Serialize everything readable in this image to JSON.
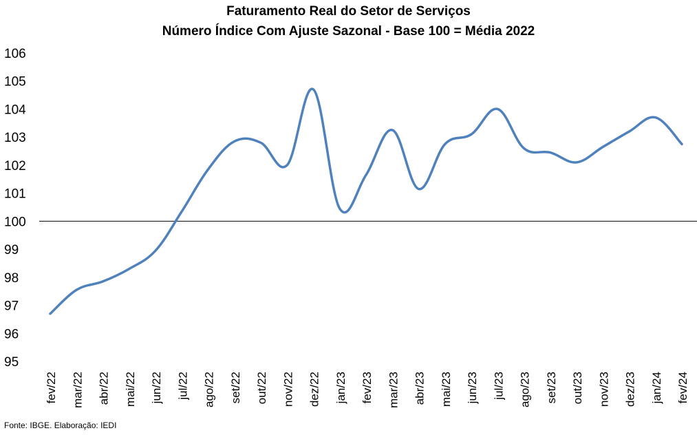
{
  "chart_data": {
    "type": "line",
    "title": "Faturamento Real do Setor de Serviços",
    "subtitle": "Número Índice Com Ajuste Sazonal - Base 100 = Média 2022",
    "xlabel": "",
    "ylabel": "",
    "categories": [
      "fev/22",
      "mar/22",
      "abr/22",
      "mai/22",
      "jun/22",
      "jul/22",
      "ago/22",
      "set/22",
      "out/22",
      "nov/22",
      "dez/22",
      "jan/23",
      "fev/23",
      "mar/23",
      "abr/23",
      "mai/23",
      "jun/23",
      "jul/23",
      "ago/23",
      "set/23",
      "out/23",
      "nov/23",
      "dez/23",
      "jan/24",
      "fev/24"
    ],
    "series": [
      {
        "name": "",
        "color": "#4F81BD",
        "values": [
          96.7,
          97.55,
          97.85,
          98.3,
          98.95,
          100.35,
          101.85,
          102.85,
          102.8,
          102.0,
          104.7,
          100.45,
          101.65,
          103.25,
          101.15,
          102.75,
          103.1,
          104.0,
          102.6,
          102.45,
          102.1,
          102.65,
          103.2,
          103.7,
          102.75
        ]
      }
    ],
    "ylim": [
      95,
      106
    ],
    "yticks": [
      95,
      96,
      97,
      98,
      99,
      100,
      101,
      102,
      103,
      104,
      105,
      106
    ],
    "reference_line": 100,
    "grid": false,
    "legend": "none"
  },
  "source_note": "Fonte: IBGE. Elaboração: IEDI"
}
